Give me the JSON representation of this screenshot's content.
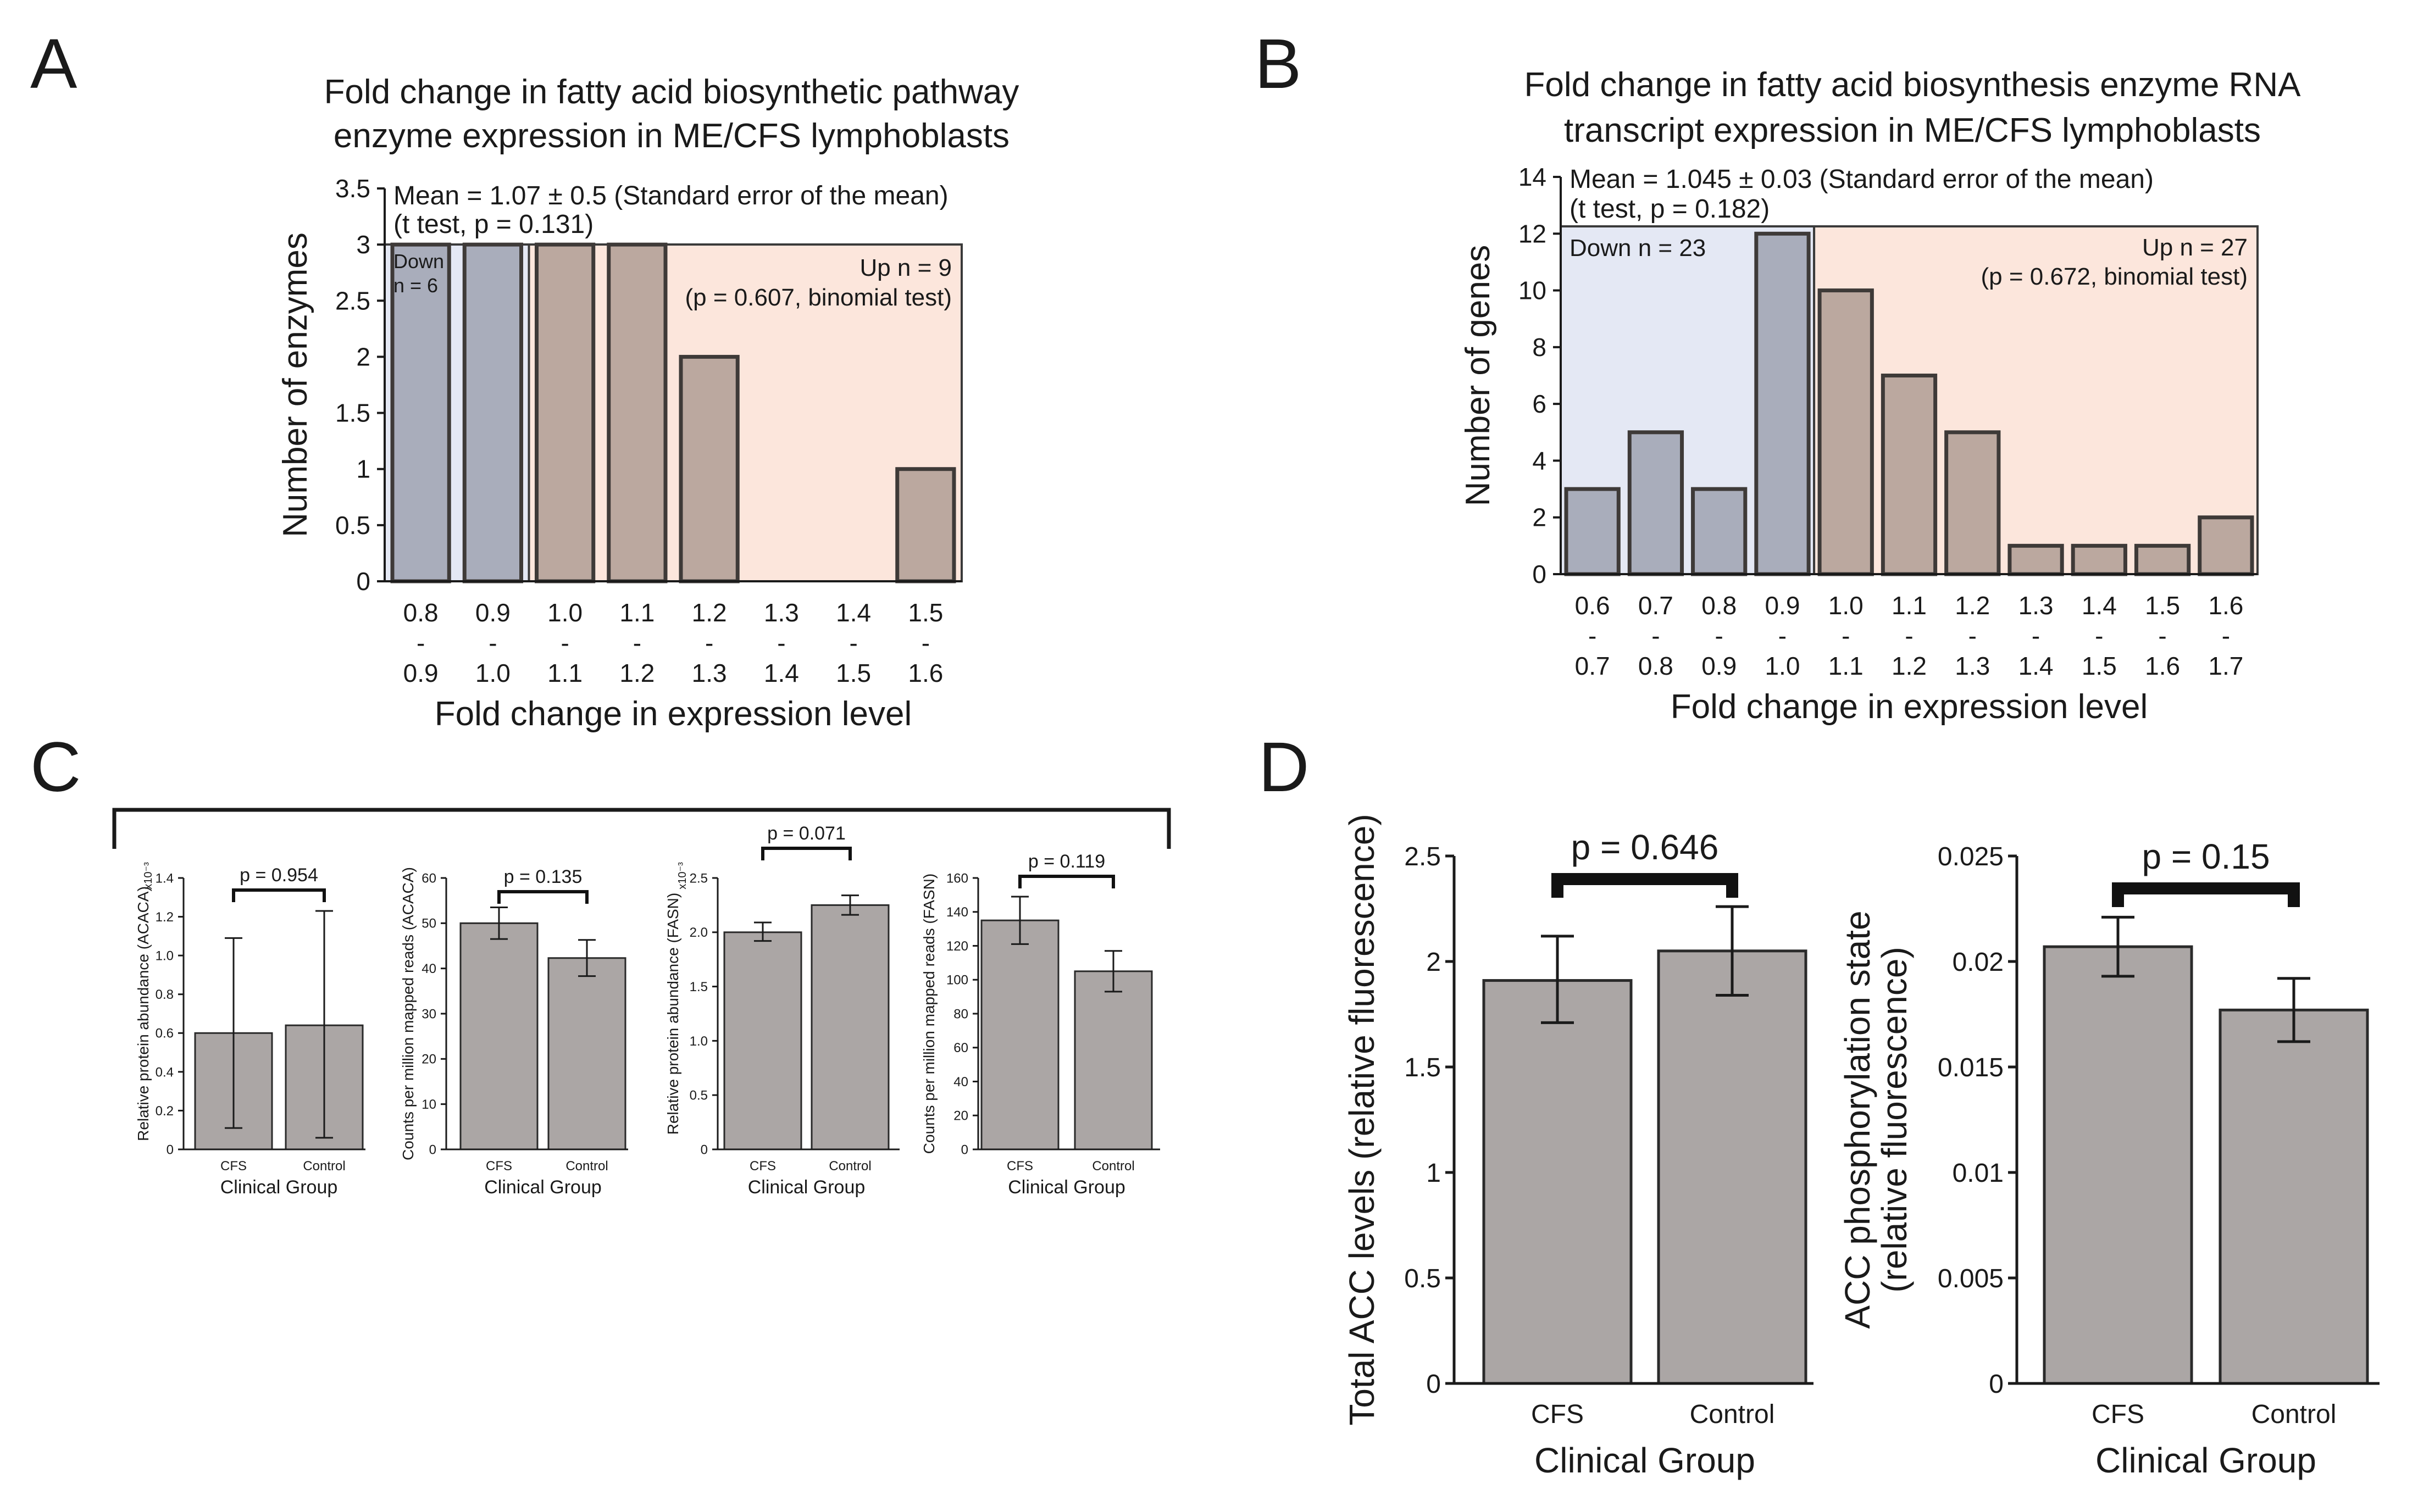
{
  "colors": {
    "down_bar": "#a9adbb",
    "up_bar": "#bba89f",
    "up_bg": "#fce6dc",
    "down_bg": "#e4e8f4",
    "gray_bar": "#aba6a5",
    "axis": "#1a1a1a"
  },
  "panel_letters": {
    "A": "A",
    "B": "B",
    "C": "C",
    "D": "D"
  },
  "chart_data": [
    {
      "id": "A",
      "type": "bar",
      "title_line1": "Fold change in fatty acid biosynthetic pathway",
      "title_line2": "enzyme expression in ME/CFS lymphoblasts",
      "xlabel": "Fold change in expression level",
      "ylabel": "Number of enzymes",
      "ylim": [
        0,
        3.5
      ],
      "yticks": [
        "0",
        "0.5",
        "1",
        "1.5",
        "2",
        "2.5",
        "3",
        "3.5"
      ],
      "categories": [
        {
          "top": "0.8",
          "mid": "-",
          "bottom": "0.9"
        },
        {
          "top": "0.9",
          "mid": "-",
          "bottom": "1.0"
        },
        {
          "top": "1.0",
          "mid": "-",
          "bottom": "1.1"
        },
        {
          "top": "1.1",
          "mid": "-",
          "bottom": "1.2"
        },
        {
          "top": "1.2",
          "mid": "-",
          "bottom": "1.3"
        },
        {
          "top": "1.3",
          "mid": "-",
          "bottom": "1.4"
        },
        {
          "top": "1.4",
          "mid": "-",
          "bottom": "1.5"
        },
        {
          "top": "1.5",
          "mid": "-",
          "bottom": "1.6"
        }
      ],
      "values": [
        3,
        3,
        3,
        3,
        2,
        0,
        0,
        1
      ],
      "groups": [
        "down",
        "down",
        "up",
        "up",
        "up",
        "up",
        "up",
        "up"
      ],
      "mean_line1": "Mean = 1.07 ± 0.5 (Standard error of the mean)",
      "mean_line2": "(t test, p = 0.131)",
      "down_line1": "Down",
      "down_line2": "n = 6",
      "up_line1": "Up n = 9",
      "up_line2": "(p = 0.607, binomial test)"
    },
    {
      "id": "B",
      "type": "bar",
      "title_line1": "Fold change in fatty acid biosynthesis enzyme RNA",
      "title_line2": "transcript expression in ME/CFS lymphoblasts",
      "xlabel": "Fold change in expression level",
      "ylabel": "Number of genes",
      "ylim": [
        0,
        14
      ],
      "yticks": [
        "0",
        "2",
        "4",
        "6",
        "8",
        "10",
        "12",
        "14"
      ],
      "categories": [
        {
          "top": "0.6",
          "mid": "-",
          "bottom": "0.7"
        },
        {
          "top": "0.7",
          "mid": "-",
          "bottom": "0.8"
        },
        {
          "top": "0.8",
          "mid": "-",
          "bottom": "0.9"
        },
        {
          "top": "0.9",
          "mid": "-",
          "bottom": "1.0"
        },
        {
          "top": "1.0",
          "mid": "-",
          "bottom": "1.1"
        },
        {
          "top": "1.1",
          "mid": "-",
          "bottom": "1.2"
        },
        {
          "top": "1.2",
          "mid": "-",
          "bottom": "1.3"
        },
        {
          "top": "1.3",
          "mid": "-",
          "bottom": "1.4"
        },
        {
          "top": "1.4",
          "mid": "-",
          "bottom": "1.5"
        },
        {
          "top": "1.5",
          "mid": "-",
          "bottom": "1.6"
        },
        {
          "top": "1.6",
          "mid": "-",
          "bottom": "1.7"
        }
      ],
      "values": [
        3,
        5,
        3,
        12,
        10,
        7,
        5,
        1,
        1,
        1,
        2
      ],
      "groups": [
        "down",
        "down",
        "down",
        "down",
        "up",
        "up",
        "up",
        "up",
        "up",
        "up",
        "up"
      ],
      "mean_line1": "Mean = 1.045 ± 0.03 (Standard error of the mean)",
      "mean_line2": "(t test, p = 0.182)",
      "down_line1": "Down n = 23",
      "up_line1": "Up n = 27",
      "up_line2": "(p = 0.672, binomial test)"
    },
    {
      "id": "C1",
      "type": "bar",
      "categories": [
        "CFS",
        "Control"
      ],
      "values": [
        0.6,
        0.64
      ],
      "errors": [
        [
          0.11,
          1.09
        ],
        [
          0.06,
          1.23
        ]
      ],
      "ylim": [
        0,
        1.4
      ],
      "yticks": [
        "0",
        "0.2",
        "0.4",
        "0.6",
        "0.8",
        "1.0",
        "1.2",
        "1.4"
      ],
      "ylabel": "Relative protein abundance (ACACA)",
      "y_exponent": "x10⁻³",
      "xlabel": "Clinical Group",
      "p_label": "p = 0.954"
    },
    {
      "id": "C2",
      "type": "bar",
      "categories": [
        "CFS",
        "Control"
      ],
      "values": [
        50,
        42.3
      ],
      "errors": [
        [
          46.5,
          53.5
        ],
        [
          38.3,
          46.3
        ]
      ],
      "ylim": [
        0,
        60
      ],
      "yticks": [
        "0",
        "10",
        "20",
        "30",
        "40",
        "50",
        "60"
      ],
      "ylabel": "Counts per million mapped reads (ACACA)",
      "xlabel": "Clinical Group",
      "p_label": "p = 0.135"
    },
    {
      "id": "C3",
      "type": "bar",
      "categories": [
        "CFS",
        "Control"
      ],
      "values": [
        2.0,
        2.25
      ],
      "errors": [
        [
          1.92,
          2.09
        ],
        [
          2.16,
          2.34
        ]
      ],
      "ylim": [
        0,
        2.5
      ],
      "yticks": [
        "0",
        "0.5",
        "1.0",
        "1.5",
        "2.0",
        "2.5"
      ],
      "ylabel": "Relative protein abundance (FASN)",
      "y_exponent": "x10⁻³",
      "xlabel": "Clinical Group",
      "p_label": "p = 0.071"
    },
    {
      "id": "C4",
      "type": "bar",
      "categories": [
        "CFS",
        "Control"
      ],
      "values": [
        135,
        105
      ],
      "errors": [
        [
          121,
          149
        ],
        [
          93,
          117
        ]
      ],
      "ylim": [
        0,
        160
      ],
      "yticks": [
        "0",
        "20",
        "40",
        "60",
        "80",
        "100",
        "120",
        "140",
        "160"
      ],
      "ylabel": "Counts per million mapped reads (FASN)",
      "xlabel": "Clinical Group",
      "p_label": "p = 0.119"
    },
    {
      "id": "D1",
      "type": "bar",
      "categories": [
        "CFS",
        "Control"
      ],
      "values": [
        1.91,
        2.05
      ],
      "errors": [
        [
          1.71,
          2.12
        ],
        [
          1.84,
          2.26
        ]
      ],
      "ylim": [
        0,
        2.5
      ],
      "yticks": [
        "0",
        "0.5",
        "1",
        "1.5",
        "2",
        "2.5"
      ],
      "ylabel": "Total ACC levels (relative fluorescence)",
      "xlabel": "Clinical Group",
      "p_label": "p = 0.646"
    },
    {
      "id": "D2",
      "type": "bar",
      "categories": [
        "CFS",
        "Control"
      ],
      "values": [
        0.0207,
        0.0177
      ],
      "errors": [
        [
          0.0193,
          0.0221
        ],
        [
          0.0162,
          0.0192
        ]
      ],
      "ylim": [
        0,
        0.025
      ],
      "yticks": [
        "0",
        "0.005",
        "0.01",
        "0.015",
        "0.02",
        "0.025"
      ],
      "ylabel_line1": "ACC phosphorylation state",
      "ylabel_line2": "(relative fluorescence)",
      "xlabel": "Clinical Group",
      "p_label": "p = 0.15"
    }
  ]
}
